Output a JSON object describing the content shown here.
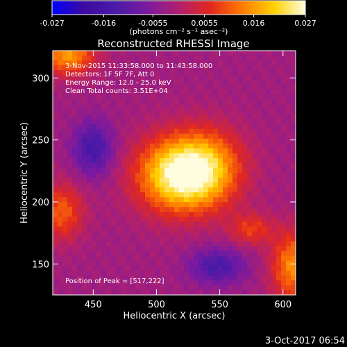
{
  "chart_data": {
    "type": "heatmap",
    "title": "Reconstructed RHESSI Image",
    "xlabel": "Heliocentric X (arcsec)",
    "ylabel": "Heliocentric Y (arcsec)",
    "xlim": [
      418,
      610
    ],
    "ylim": [
      125,
      322
    ],
    "xticks": [
      450,
      500,
      550,
      600
    ],
    "yticks": [
      150,
      200,
      250,
      300
    ],
    "colorbar": {
      "ticks": [
        "-0.027",
        "-0.016",
        "-0.0055",
        "0.0055",
        "0.016",
        "0.027"
      ],
      "vmin": -0.027,
      "vmax": 0.027,
      "unit_label": "(photons cm⁻² s⁻¹ asec⁻²)"
    },
    "colormap": [
      "#0000ff",
      "#3c0aa0",
      "#4a1aa8",
      "#7a1aa0",
      "#b0206e",
      "#e2281e",
      "#ff7a00",
      "#ffd000",
      "#fffde0"
    ],
    "info_lines": [
      "3-Nov-2015 11:33:58.000 to 11:43:58.000",
      "Detectors: 1F 5F 7F, Att 0",
      "Energy Range: 12.0 - 25.0 keV",
      "Clean    Total counts: 3.51E+04"
    ],
    "peak_label": "Position of Peak = [517,222]",
    "peak": [
      517,
      222
    ],
    "sources": [
      {
        "x": 517,
        "y": 222,
        "amp": 0.027,
        "sx": 23,
        "sy": 21
      },
      {
        "x": 542,
        "y": 228,
        "amp": 0.014,
        "sx": 20,
        "sy": 22
      },
      {
        "x": 430,
        "y": 318,
        "amp": 0.018,
        "sx": 15,
        "sy": 11
      },
      {
        "x": 425,
        "y": 192,
        "amp": 0.013,
        "sx": 12,
        "sy": 16
      },
      {
        "x": 608,
        "y": 148,
        "amp": 0.017,
        "sx": 12,
        "sy": 20
      },
      {
        "x": 575,
        "y": 178,
        "amp": 0.01,
        "sx": 12,
        "sy": 9
      },
      {
        "x": 450,
        "y": 243,
        "amp": -0.013,
        "sx": 11,
        "sy": 15
      },
      {
        "x": 548,
        "y": 148,
        "amp": -0.012,
        "sx": 15,
        "sy": 10
      }
    ],
    "background": -0.002
  },
  "footer": {
    "timestamp": "3-Oct-2017 06:54"
  }
}
